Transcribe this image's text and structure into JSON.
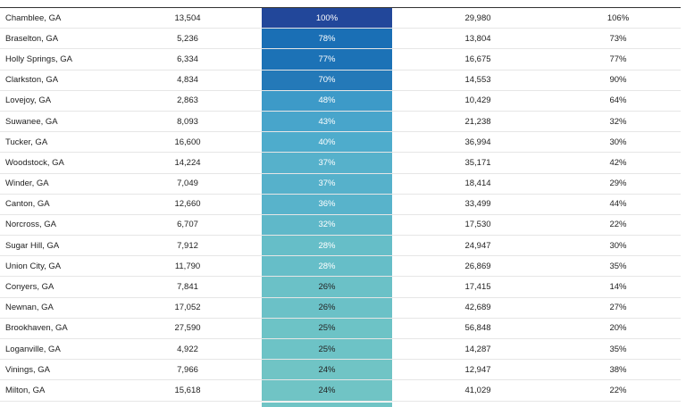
{
  "table": {
    "rows": [
      [
        "Chamblee, GA",
        "13,504",
        "100%",
        "29,980",
        "106%"
      ],
      [
        "Braselton, GA",
        "5,236",
        "78%",
        "13,804",
        "73%"
      ],
      [
        "Holly Springs, GA",
        "6,334",
        "77%",
        "16,675",
        "77%"
      ],
      [
        "Clarkston, GA",
        "4,834",
        "70%",
        "14,553",
        "90%"
      ],
      [
        "Lovejoy, GA",
        "2,863",
        "48%",
        "10,429",
        "64%"
      ],
      [
        "Suwanee, GA",
        "8,093",
        "43%",
        "21,238",
        "32%"
      ],
      [
        "Tucker, GA",
        "16,600",
        "40%",
        "36,994",
        "30%"
      ],
      [
        "Woodstock, GA",
        "14,224",
        "37%",
        "35,171",
        "42%"
      ],
      [
        "Winder, GA",
        "7,049",
        "37%",
        "18,414",
        "29%"
      ],
      [
        "Canton, GA",
        "12,660",
        "36%",
        "33,499",
        "44%"
      ],
      [
        "Norcross, GA",
        "6,707",
        "32%",
        "17,530",
        "22%"
      ],
      [
        "Sugar Hill, GA",
        "7,912",
        "28%",
        "24,947",
        "30%"
      ],
      [
        "Union City, GA",
        "11,790",
        "28%",
        "26,869",
        "35%"
      ],
      [
        "Conyers, GA",
        "7,841",
        "26%",
        "17,415",
        "14%"
      ],
      [
        "Newnan, GA",
        "17,052",
        "26%",
        "42,689",
        "27%"
      ],
      [
        "Brookhaven, GA",
        "27,590",
        "25%",
        "56,848",
        "20%"
      ],
      [
        "Loganville, GA",
        "4,922",
        "25%",
        "14,287",
        "35%"
      ],
      [
        "Vinings, GA",
        "7,966",
        "24%",
        "12,947",
        "38%"
      ],
      [
        "Milton, GA",
        "15,618",
        "24%",
        "41,029",
        "22%"
      ]
    ],
    "highlight_colors": [
      "#22479a",
      "#1a6fb5",
      "#1c72b6",
      "#2479b8",
      "#3d9ac8",
      "#48a5cb",
      "#4eaccc",
      "#56b1cb",
      "#56b1cb",
      "#58b3cb",
      "#5fb8c9",
      "#66bec8",
      "#66bec8",
      "#6bc1c7",
      "#6bc1c7",
      "#6dc3c6",
      "#6dc3c6",
      "#70c4c5",
      "#70c4c5"
    ]
  }
}
